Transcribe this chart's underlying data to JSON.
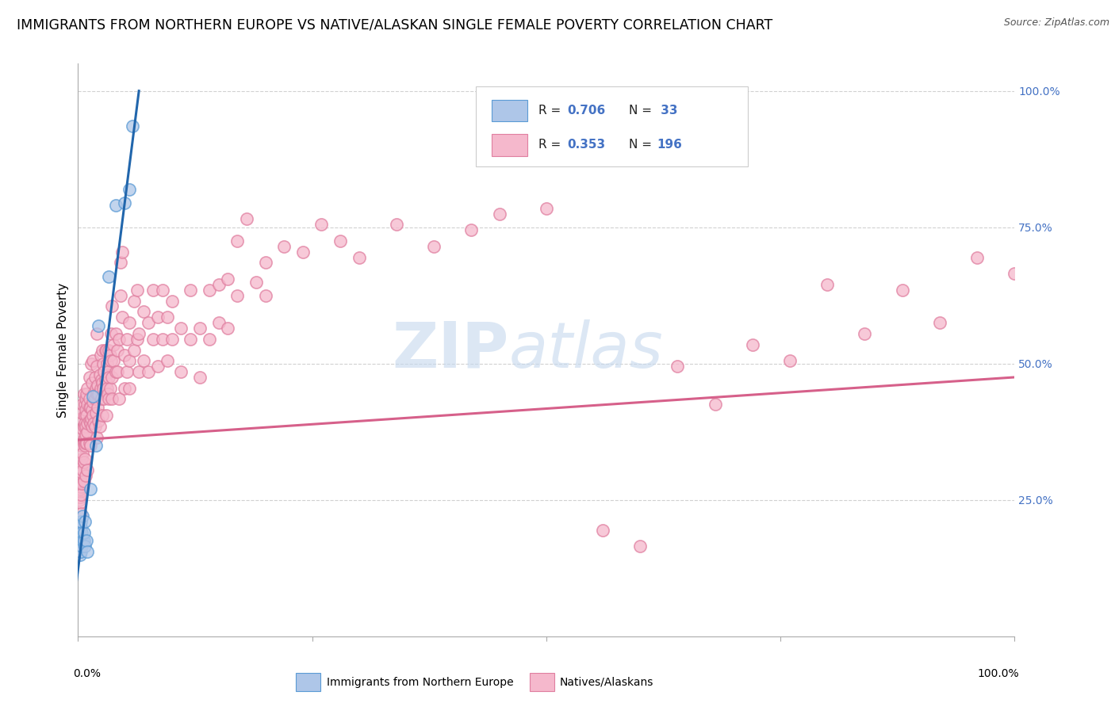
{
  "title": "IMMIGRANTS FROM NORTHERN EUROPE VS NATIVE/ALASKAN SINGLE FEMALE POVERTY CORRELATION CHART",
  "source": "Source: ZipAtlas.com",
  "ylabel": "Single Female Poverty",
  "y_tick_labels": [
    "25.0%",
    "50.0%",
    "75.0%",
    "100.0%"
  ],
  "y_tick_positions": [
    0.25,
    0.5,
    0.75,
    1.0
  ],
  "watermark_zip": "ZIP",
  "watermark_atlas": "atlas",
  "legend_label_blue": "Immigrants from Northern Europe",
  "legend_label_pink": "Natives/Alaskans",
  "blue_color": "#aec6e8",
  "pink_color": "#f5b8cc",
  "blue_edge_color": "#5b9bd5",
  "pink_edge_color": "#e07fa0",
  "blue_line_color": "#2166ac",
  "pink_line_color": "#d6608a",
  "blue_scatter": [
    [
      0.001,
      0.175
    ],
    [
      0.001,
      0.195
    ],
    [
      0.001,
      0.185
    ],
    [
      0.001,
      0.16
    ],
    [
      0.002,
      0.165
    ],
    [
      0.002,
      0.185
    ],
    [
      0.002,
      0.17
    ],
    [
      0.002,
      0.155
    ],
    [
      0.002,
      0.19
    ],
    [
      0.002,
      0.2
    ],
    [
      0.002,
      0.15
    ],
    [
      0.002,
      0.18
    ],
    [
      0.003,
      0.165
    ],
    [
      0.003,
      0.18
    ],
    [
      0.003,
      0.155
    ],
    [
      0.003,
      0.2
    ],
    [
      0.003,
      0.175
    ],
    [
      0.003,
      0.21
    ],
    [
      0.004,
      0.19
    ],
    [
      0.004,
      0.165
    ],
    [
      0.005,
      0.22
    ],
    [
      0.005,
      0.175
    ],
    [
      0.006,
      0.175
    ],
    [
      0.006,
      0.19
    ],
    [
      0.007,
      0.165
    ],
    [
      0.007,
      0.21
    ],
    [
      0.009,
      0.175
    ],
    [
      0.01,
      0.155
    ],
    [
      0.013,
      0.27
    ],
    [
      0.016,
      0.44
    ],
    [
      0.019,
      0.35
    ],
    [
      0.022,
      0.57
    ],
    [
      0.033,
      0.66
    ],
    [
      0.04,
      0.79
    ],
    [
      0.05,
      0.795
    ],
    [
      0.055,
      0.82
    ],
    [
      0.058,
      0.935
    ]
  ],
  "pink_scatter": [
    [
      0.001,
      0.265
    ],
    [
      0.001,
      0.275
    ],
    [
      0.001,
      0.25
    ],
    [
      0.001,
      0.255
    ],
    [
      0.001,
      0.3
    ],
    [
      0.001,
      0.295
    ],
    [
      0.001,
      0.285
    ],
    [
      0.002,
      0.255
    ],
    [
      0.002,
      0.285
    ],
    [
      0.002,
      0.32
    ],
    [
      0.002,
      0.265
    ],
    [
      0.002,
      0.27
    ],
    [
      0.002,
      0.3
    ],
    [
      0.002,
      0.245
    ],
    [
      0.002,
      0.31
    ],
    [
      0.003,
      0.275
    ],
    [
      0.003,
      0.35
    ],
    [
      0.003,
      0.285
    ],
    [
      0.003,
      0.225
    ],
    [
      0.003,
      0.295
    ],
    [
      0.003,
      0.4
    ],
    [
      0.003,
      0.26
    ],
    [
      0.003,
      0.315
    ],
    [
      0.004,
      0.3
    ],
    [
      0.004,
      0.35
    ],
    [
      0.004,
      0.28
    ],
    [
      0.004,
      0.325
    ],
    [
      0.004,
      0.37
    ],
    [
      0.004,
      0.41
    ],
    [
      0.004,
      0.3
    ],
    [
      0.005,
      0.335
    ],
    [
      0.005,
      0.38
    ],
    [
      0.005,
      0.305
    ],
    [
      0.005,
      0.425
    ],
    [
      0.006,
      0.355
    ],
    [
      0.006,
      0.385
    ],
    [
      0.006,
      0.445
    ],
    [
      0.006,
      0.285
    ],
    [
      0.006,
      0.32
    ],
    [
      0.006,
      0.36
    ],
    [
      0.007,
      0.365
    ],
    [
      0.007,
      0.405
    ],
    [
      0.007,
      0.425
    ],
    [
      0.007,
      0.325
    ],
    [
      0.007,
      0.35
    ],
    [
      0.007,
      0.39
    ],
    [
      0.008,
      0.385
    ],
    [
      0.008,
      0.435
    ],
    [
      0.008,
      0.295
    ],
    [
      0.008,
      0.355
    ],
    [
      0.008,
      0.37
    ],
    [
      0.008,
      0.415
    ],
    [
      0.009,
      0.355
    ],
    [
      0.009,
      0.405
    ],
    [
      0.009,
      0.445
    ],
    [
      0.01,
      0.375
    ],
    [
      0.01,
      0.455
    ],
    [
      0.01,
      0.305
    ],
    [
      0.01,
      0.39
    ],
    [
      0.01,
      0.425
    ],
    [
      0.012,
      0.395
    ],
    [
      0.012,
      0.435
    ],
    [
      0.012,
      0.475
    ],
    [
      0.012,
      0.42
    ],
    [
      0.012,
      0.355
    ],
    [
      0.013,
      0.42
    ],
    [
      0.013,
      0.35
    ],
    [
      0.013,
      0.39
    ],
    [
      0.014,
      0.4
    ],
    [
      0.014,
      0.5
    ],
    [
      0.015,
      0.415
    ],
    [
      0.015,
      0.465
    ],
    [
      0.015,
      0.385
    ],
    [
      0.016,
      0.405
    ],
    [
      0.016,
      0.505
    ],
    [
      0.016,
      0.43
    ],
    [
      0.017,
      0.39
    ],
    [
      0.017,
      0.445
    ],
    [
      0.018,
      0.435
    ],
    [
      0.018,
      0.475
    ],
    [
      0.018,
      0.385
    ],
    [
      0.019,
      0.41
    ],
    [
      0.019,
      0.455
    ],
    [
      0.02,
      0.445
    ],
    [
      0.02,
      0.495
    ],
    [
      0.02,
      0.555
    ],
    [
      0.02,
      0.365
    ],
    [
      0.021,
      0.42
    ],
    [
      0.021,
      0.46
    ],
    [
      0.022,
      0.445
    ],
    [
      0.022,
      0.395
    ],
    [
      0.023,
      0.48
    ],
    [
      0.023,
      0.385
    ],
    [
      0.024,
      0.455
    ],
    [
      0.024,
      0.515
    ],
    [
      0.025,
      0.47
    ],
    [
      0.025,
      0.435
    ],
    [
      0.026,
      0.465
    ],
    [
      0.026,
      0.525
    ],
    [
      0.026,
      0.405
    ],
    [
      0.027,
      0.5
    ],
    [
      0.027,
      0.455
    ],
    [
      0.028,
      0.485
    ],
    [
      0.028,
      0.435
    ],
    [
      0.029,
      0.525
    ],
    [
      0.029,
      0.47
    ],
    [
      0.03,
      0.465
    ],
    [
      0.03,
      0.525
    ],
    [
      0.03,
      0.405
    ],
    [
      0.031,
      0.5
    ],
    [
      0.031,
      0.455
    ],
    [
      0.032,
      0.445
    ],
    [
      0.032,
      0.485
    ],
    [
      0.033,
      0.525
    ],
    [
      0.033,
      0.475
    ],
    [
      0.033,
      0.435
    ],
    [
      0.034,
      0.455
    ],
    [
      0.034,
      0.515
    ],
    [
      0.035,
      0.555
    ],
    [
      0.035,
      0.505
    ],
    [
      0.036,
      0.605
    ],
    [
      0.036,
      0.475
    ],
    [
      0.036,
      0.435
    ],
    [
      0.038,
      0.535
    ],
    [
      0.038,
      0.505
    ],
    [
      0.04,
      0.485
    ],
    [
      0.04,
      0.555
    ],
    [
      0.042,
      0.525
    ],
    [
      0.042,
      0.485
    ],
    [
      0.044,
      0.435
    ],
    [
      0.044,
      0.545
    ],
    [
      0.045,
      0.625
    ],
    [
      0.045,
      0.685
    ],
    [
      0.047,
      0.705
    ],
    [
      0.047,
      0.585
    ],
    [
      0.05,
      0.515
    ],
    [
      0.05,
      0.455
    ],
    [
      0.052,
      0.485
    ],
    [
      0.052,
      0.545
    ],
    [
      0.055,
      0.575
    ],
    [
      0.055,
      0.505
    ],
    [
      0.055,
      0.455
    ],
    [
      0.06,
      0.525
    ],
    [
      0.06,
      0.615
    ],
    [
      0.063,
      0.545
    ],
    [
      0.063,
      0.635
    ],
    [
      0.065,
      0.555
    ],
    [
      0.065,
      0.485
    ],
    [
      0.07,
      0.505
    ],
    [
      0.07,
      0.595
    ],
    [
      0.075,
      0.575
    ],
    [
      0.075,
      0.485
    ],
    [
      0.08,
      0.635
    ],
    [
      0.08,
      0.545
    ],
    [
      0.085,
      0.585
    ],
    [
      0.085,
      0.495
    ],
    [
      0.09,
      0.545
    ],
    [
      0.09,
      0.635
    ],
    [
      0.095,
      0.505
    ],
    [
      0.095,
      0.585
    ],
    [
      0.1,
      0.545
    ],
    [
      0.1,
      0.615
    ],
    [
      0.11,
      0.485
    ],
    [
      0.11,
      0.565
    ],
    [
      0.12,
      0.545
    ],
    [
      0.12,
      0.635
    ],
    [
      0.13,
      0.565
    ],
    [
      0.13,
      0.475
    ],
    [
      0.14,
      0.545
    ],
    [
      0.14,
      0.635
    ],
    [
      0.15,
      0.575
    ],
    [
      0.15,
      0.645
    ],
    [
      0.16,
      0.565
    ],
    [
      0.16,
      0.655
    ],
    [
      0.17,
      0.625
    ],
    [
      0.17,
      0.725
    ],
    [
      0.18,
      0.765
    ],
    [
      0.19,
      0.65
    ],
    [
      0.2,
      0.625
    ],
    [
      0.2,
      0.685
    ],
    [
      0.22,
      0.715
    ],
    [
      0.24,
      0.705
    ],
    [
      0.26,
      0.755
    ],
    [
      0.28,
      0.725
    ],
    [
      0.3,
      0.695
    ],
    [
      0.34,
      0.755
    ],
    [
      0.38,
      0.715
    ],
    [
      0.42,
      0.745
    ],
    [
      0.45,
      0.775
    ],
    [
      0.5,
      0.785
    ],
    [
      0.56,
      0.195
    ],
    [
      0.6,
      0.165
    ],
    [
      0.64,
      0.495
    ],
    [
      0.68,
      0.425
    ],
    [
      0.72,
      0.535
    ],
    [
      0.76,
      0.505
    ],
    [
      0.8,
      0.645
    ],
    [
      0.84,
      0.555
    ],
    [
      0.88,
      0.635
    ],
    [
      0.92,
      0.575
    ],
    [
      0.96,
      0.695
    ],
    [
      1.0,
      0.665
    ]
  ],
  "blue_line_x": [
    -0.005,
    0.065
  ],
  "blue_line_y": [
    0.055,
    1.0
  ],
  "pink_line_x": [
    0.0,
    1.0
  ],
  "pink_line_y": [
    0.36,
    0.475
  ],
  "xlim": [
    0,
    1.0
  ],
  "ylim": [
    0,
    1.05
  ],
  "background_color": "#ffffff",
  "grid_color": "#cccccc",
  "title_fontsize": 12.5,
  "source_fontsize": 9,
  "axis_label_fontsize": 11,
  "tick_fontsize": 10,
  "scatter_size": 120,
  "scatter_alpha": 0.75,
  "scatter_linewidth": 1.2
}
